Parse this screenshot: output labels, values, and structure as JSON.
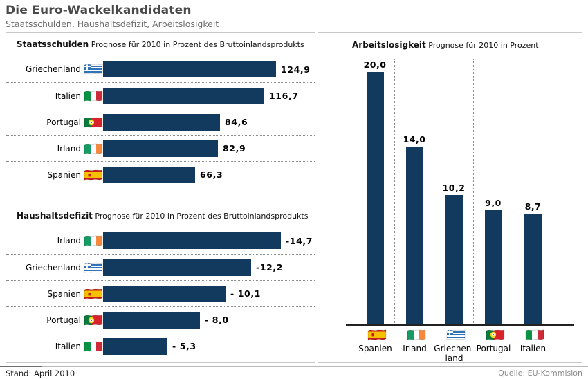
{
  "title": "Die Euro-Wackelkandidaten",
  "subtitle": "Staatsschulden, Haushaltsdefizit, Arbeitslosigkeit",
  "footer": {
    "left": "Stand: April 2010",
    "right": "Quelle: EU-Kommision"
  },
  "colors": {
    "bar": "#123a5e",
    "separator": "#8c8c8c",
    "panel_border": "#c9c9c9",
    "axis": "#222222"
  },
  "chart_data": [
    {
      "type": "bar",
      "orientation": "horizontal",
      "title": "Staatsschulden",
      "subtitle": "Prognose für 2010 in Prozent des Bruttoinlandsprodukts",
      "unit": "Prozent des BIP",
      "categories": [
        "Griechenland",
        "Italien",
        "Portugal",
        "Irland",
        "Spanien"
      ],
      "flags": [
        "greece",
        "italy",
        "portugal",
        "ireland",
        "spain"
      ],
      "values": [
        124.9,
        116.7,
        84.6,
        82.9,
        66.3
      ],
      "labels": [
        "124,9",
        "116,7",
        "84,6",
        "82,9",
        "66,3"
      ],
      "xlim": [
        0,
        130
      ],
      "grid": "dotted row separators"
    },
    {
      "type": "bar",
      "orientation": "horizontal",
      "title": "Haushaltsdefizit",
      "subtitle": "Prognose für 2010 in Prozent des Bruttoinlandsprodukts",
      "unit": "Prozent des BIP",
      "categories": [
        "Irland",
        "Griechenland",
        "Spanien",
        "Portugal",
        "Italien"
      ],
      "flags": [
        "ireland",
        "greece",
        "spain",
        "portugal",
        "italy"
      ],
      "values": [
        14.7,
        12.2,
        10.1,
        8.0,
        5.3
      ],
      "labels": [
        "-14,7",
        "-12,2",
        "- 10,1",
        "- 8,0",
        "- 5,3"
      ],
      "xlim": [
        0,
        15
      ],
      "grid": "dotted row separators"
    },
    {
      "type": "bar",
      "orientation": "vertical",
      "title": "Arbeitslosigkeit",
      "subtitle": "Prognose für 2010 in Prozent",
      "unit": "Prozent",
      "categories": [
        "Spanien",
        "Irland",
        "Griechen-\nland",
        "Portugal",
        "Italien"
      ],
      "flags": [
        "spain",
        "ireland",
        "greece",
        "portugal",
        "italy"
      ],
      "values": [
        20.0,
        14.0,
        10.2,
        9.0,
        8.7
      ],
      "labels": [
        "20,0",
        "14,0",
        "10,2",
        "9,0",
        "8,7"
      ],
      "ylim": [
        0,
        21
      ],
      "grid": "dotted vertical column separators"
    }
  ]
}
